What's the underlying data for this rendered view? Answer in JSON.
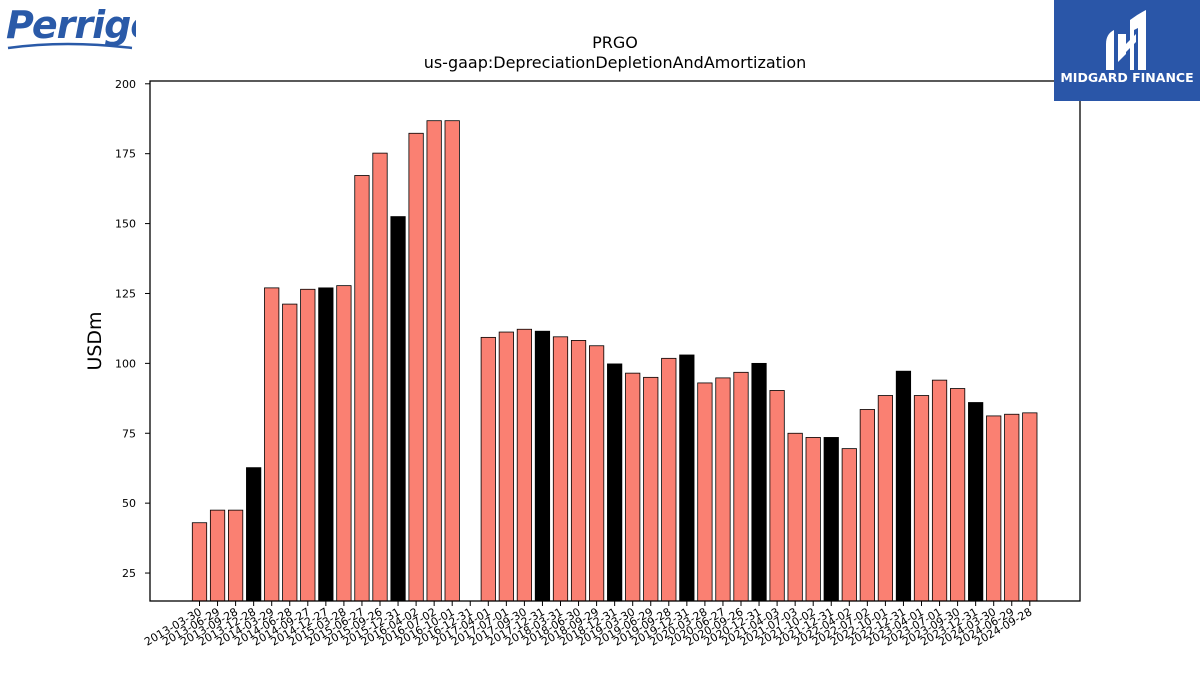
{
  "header": {
    "company_logo_text": "Perrigo",
    "brand_logo_text": "MIDGARD FINANCE"
  },
  "colors": {
    "bar_default": "#fa8072",
    "bar_highlight": "#000000",
    "brand_bg": "#2a56a8",
    "company_logo": "#2a5aa8"
  },
  "chart_data": {
    "type": "bar",
    "title": "PRGO",
    "subtitle": "us-gaap:DepreciationDepletionAndAmortization",
    "xlabel": "",
    "ylabel": "USDm",
    "ylim": [
      15,
      201
    ],
    "yticks": [
      25,
      50,
      75,
      100,
      125,
      150,
      175,
      200
    ],
    "grid": false,
    "categories": [
      "2013-03-30",
      "2013-06-29",
      "2013-09-28",
      "2013-12-28",
      "2014-03-29",
      "2014-06-28",
      "2014-09-27",
      "2014-12-27",
      "2015-03-28",
      "2015-06-27",
      "2015-09-26",
      "2015-12-31",
      "2016-04-02",
      "2016-07-02",
      "2016-10-01",
      "2016-12-31",
      "2017-04-01",
      "2017-07-01",
      "2017-09-30",
      "2017-12-31",
      "2018-03-31",
      "2018-06-30",
      "2018-09-29",
      "2018-12-31",
      "2019-03-30",
      "2019-06-29",
      "2019-09-28",
      "2019-12-31",
      "2020-03-28",
      "2020-06-27",
      "2020-09-26",
      "2020-12-31",
      "2021-04-03",
      "2021-07-03",
      "2021-10-02",
      "2021-12-31",
      "2022-04-02",
      "2022-07-02",
      "2022-10-01",
      "2022-12-31",
      "2023-04-01",
      "2023-07-01",
      "2023-09-30",
      "2023-12-31",
      "2024-03-30",
      "2024-06-29",
      "2024-09-28"
    ],
    "values": [
      43,
      47.5,
      47.5,
      62.7,
      127,
      121.2,
      126.5,
      127,
      127.8,
      167.2,
      175.2,
      152.5,
      182.3,
      186.8,
      186.8,
      null,
      109.3,
      111.2,
      112.2,
      111.5,
      109.5,
      108.2,
      106.3,
      99.8,
      96.5,
      95,
      101.8,
      103,
      93,
      94.8,
      96.8,
      100,
      90.3,
      75,
      73.5,
      73.5,
      69.5,
      83.5,
      88.5,
      97.2,
      88.5,
      94,
      91,
      86,
      81.2,
      81.8,
      82.3
    ],
    "highlight": [
      false,
      false,
      false,
      true,
      false,
      false,
      false,
      true,
      false,
      false,
      false,
      true,
      false,
      false,
      false,
      false,
      false,
      false,
      false,
      true,
      false,
      false,
      false,
      true,
      false,
      false,
      false,
      true,
      false,
      false,
      false,
      true,
      false,
      false,
      false,
      true,
      false,
      false,
      false,
      true,
      false,
      false,
      false,
      true,
      false,
      false,
      false
    ]
  }
}
